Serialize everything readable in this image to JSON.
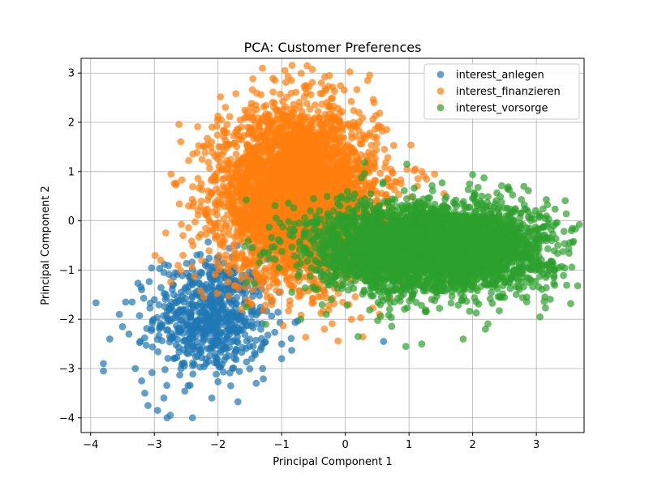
{
  "chart_data": {
    "type": "scatter",
    "title": "PCA: Customer Preferences",
    "xlabel": "Principal Component 1",
    "ylabel": "Principal Component 2",
    "xlim": [
      -4.15,
      3.75
    ],
    "ylim": [
      -4.3,
      3.3
    ],
    "xticks": [
      -4,
      -3,
      -2,
      -1,
      0,
      1,
      2,
      3
    ],
    "yticks": [
      -4,
      -3,
      -2,
      -1,
      0,
      1,
      2,
      3
    ],
    "grid": true,
    "legend_position": "top-right",
    "series": [
      {
        "name": "interest_anlegen",
        "color": "#1f77b4",
        "center": [
          -2.1,
          -1.95
        ],
        "spread": [
          0.45,
          0.6
        ],
        "count": 650,
        "points": [
          [
            -3.8,
            -2.9
          ],
          [
            -3.8,
            -3.05
          ],
          [
            -3.7,
            -2.4
          ],
          [
            -3.55,
            -1.9
          ],
          [
            -3.5,
            -2.15
          ],
          [
            -3.45,
            -1.65
          ],
          [
            -3.35,
            -1.65
          ],
          [
            -3.4,
            -2.3
          ],
          [
            -3.3,
            -3.0
          ],
          [
            -3.2,
            -1.4
          ],
          [
            -3.2,
            -3.25
          ],
          [
            -3.15,
            -3.5
          ],
          [
            -3.1,
            -3.75
          ],
          [
            -3.0,
            -1.6
          ],
          [
            -2.95,
            -3.85
          ],
          [
            -2.85,
            -3.6
          ],
          [
            -2.8,
            -4.0
          ],
          [
            -2.75,
            -3.95
          ],
          [
            -2.4,
            -4.0
          ],
          [
            -1.8,
            -3.35
          ],
          [
            -1.4,
            -3.3
          ],
          [
            -1.0,
            -2.8
          ],
          [
            -1.0,
            -2.5
          ],
          [
            -1.3,
            -3.0
          ],
          [
            0.6,
            -2.45
          ],
          [
            -1.75,
            -0.95
          ],
          [
            -2.2,
            -0.9
          ],
          [
            -2.85,
            -1.05
          ]
        ]
      },
      {
        "name": "interest_finanzieren",
        "color": "#ff7f0e",
        "center": [
          -0.75,
          0.55
        ],
        "spread": [
          0.62,
          0.85
        ],
        "count": 3800,
        "points": [
          [
            -2.9,
            -0.8
          ],
          [
            -2.55,
            -0.3
          ],
          [
            -2.25,
            1.25
          ],
          [
            -2.1,
            1.6
          ],
          [
            -1.95,
            1.5
          ],
          [
            -1.95,
            2.05
          ],
          [
            -1.65,
            2.05
          ],
          [
            -0.95,
            3.05
          ],
          [
            -0.6,
            3.15
          ],
          [
            -0.25,
            2.95
          ],
          [
            0.35,
            2.85
          ],
          [
            0.45,
            2.4
          ],
          [
            0.65,
            1.85
          ],
          [
            1.1,
            1.05
          ],
          [
            1.2,
            1.0
          ],
          [
            1.4,
            0.95
          ],
          [
            1.55,
            0.55
          ],
          [
            -2.55,
            -0.7
          ]
        ]
      },
      {
        "name": "interest_vorsorge",
        "color": "#2ca02c",
        "center": [
          1.35,
          -0.55
        ],
        "spread": [
          0.9,
          0.45
        ],
        "count": 3800,
        "points": [
          [
            -1.55,
            -1.75
          ],
          [
            -1.25,
            -2.1
          ],
          [
            -0.7,
            -2.0
          ],
          [
            -0.3,
            -1.9
          ],
          [
            0.2,
            -2.35
          ],
          [
            0.95,
            -2.55
          ],
          [
            1.2,
            -2.5
          ],
          [
            1.85,
            -2.4
          ],
          [
            2.2,
            -2.2
          ],
          [
            2.85,
            -1.55
          ],
          [
            3.15,
            -1.15
          ],
          [
            3.35,
            -0.95
          ],
          [
            3.3,
            -0.05
          ],
          [
            2.55,
            0.65
          ],
          [
            1.95,
            0.75
          ],
          [
            0.4,
            0.55
          ],
          [
            -0.55,
            0.2
          ],
          [
            -1.35,
            -0.85
          ]
        ]
      }
    ]
  }
}
